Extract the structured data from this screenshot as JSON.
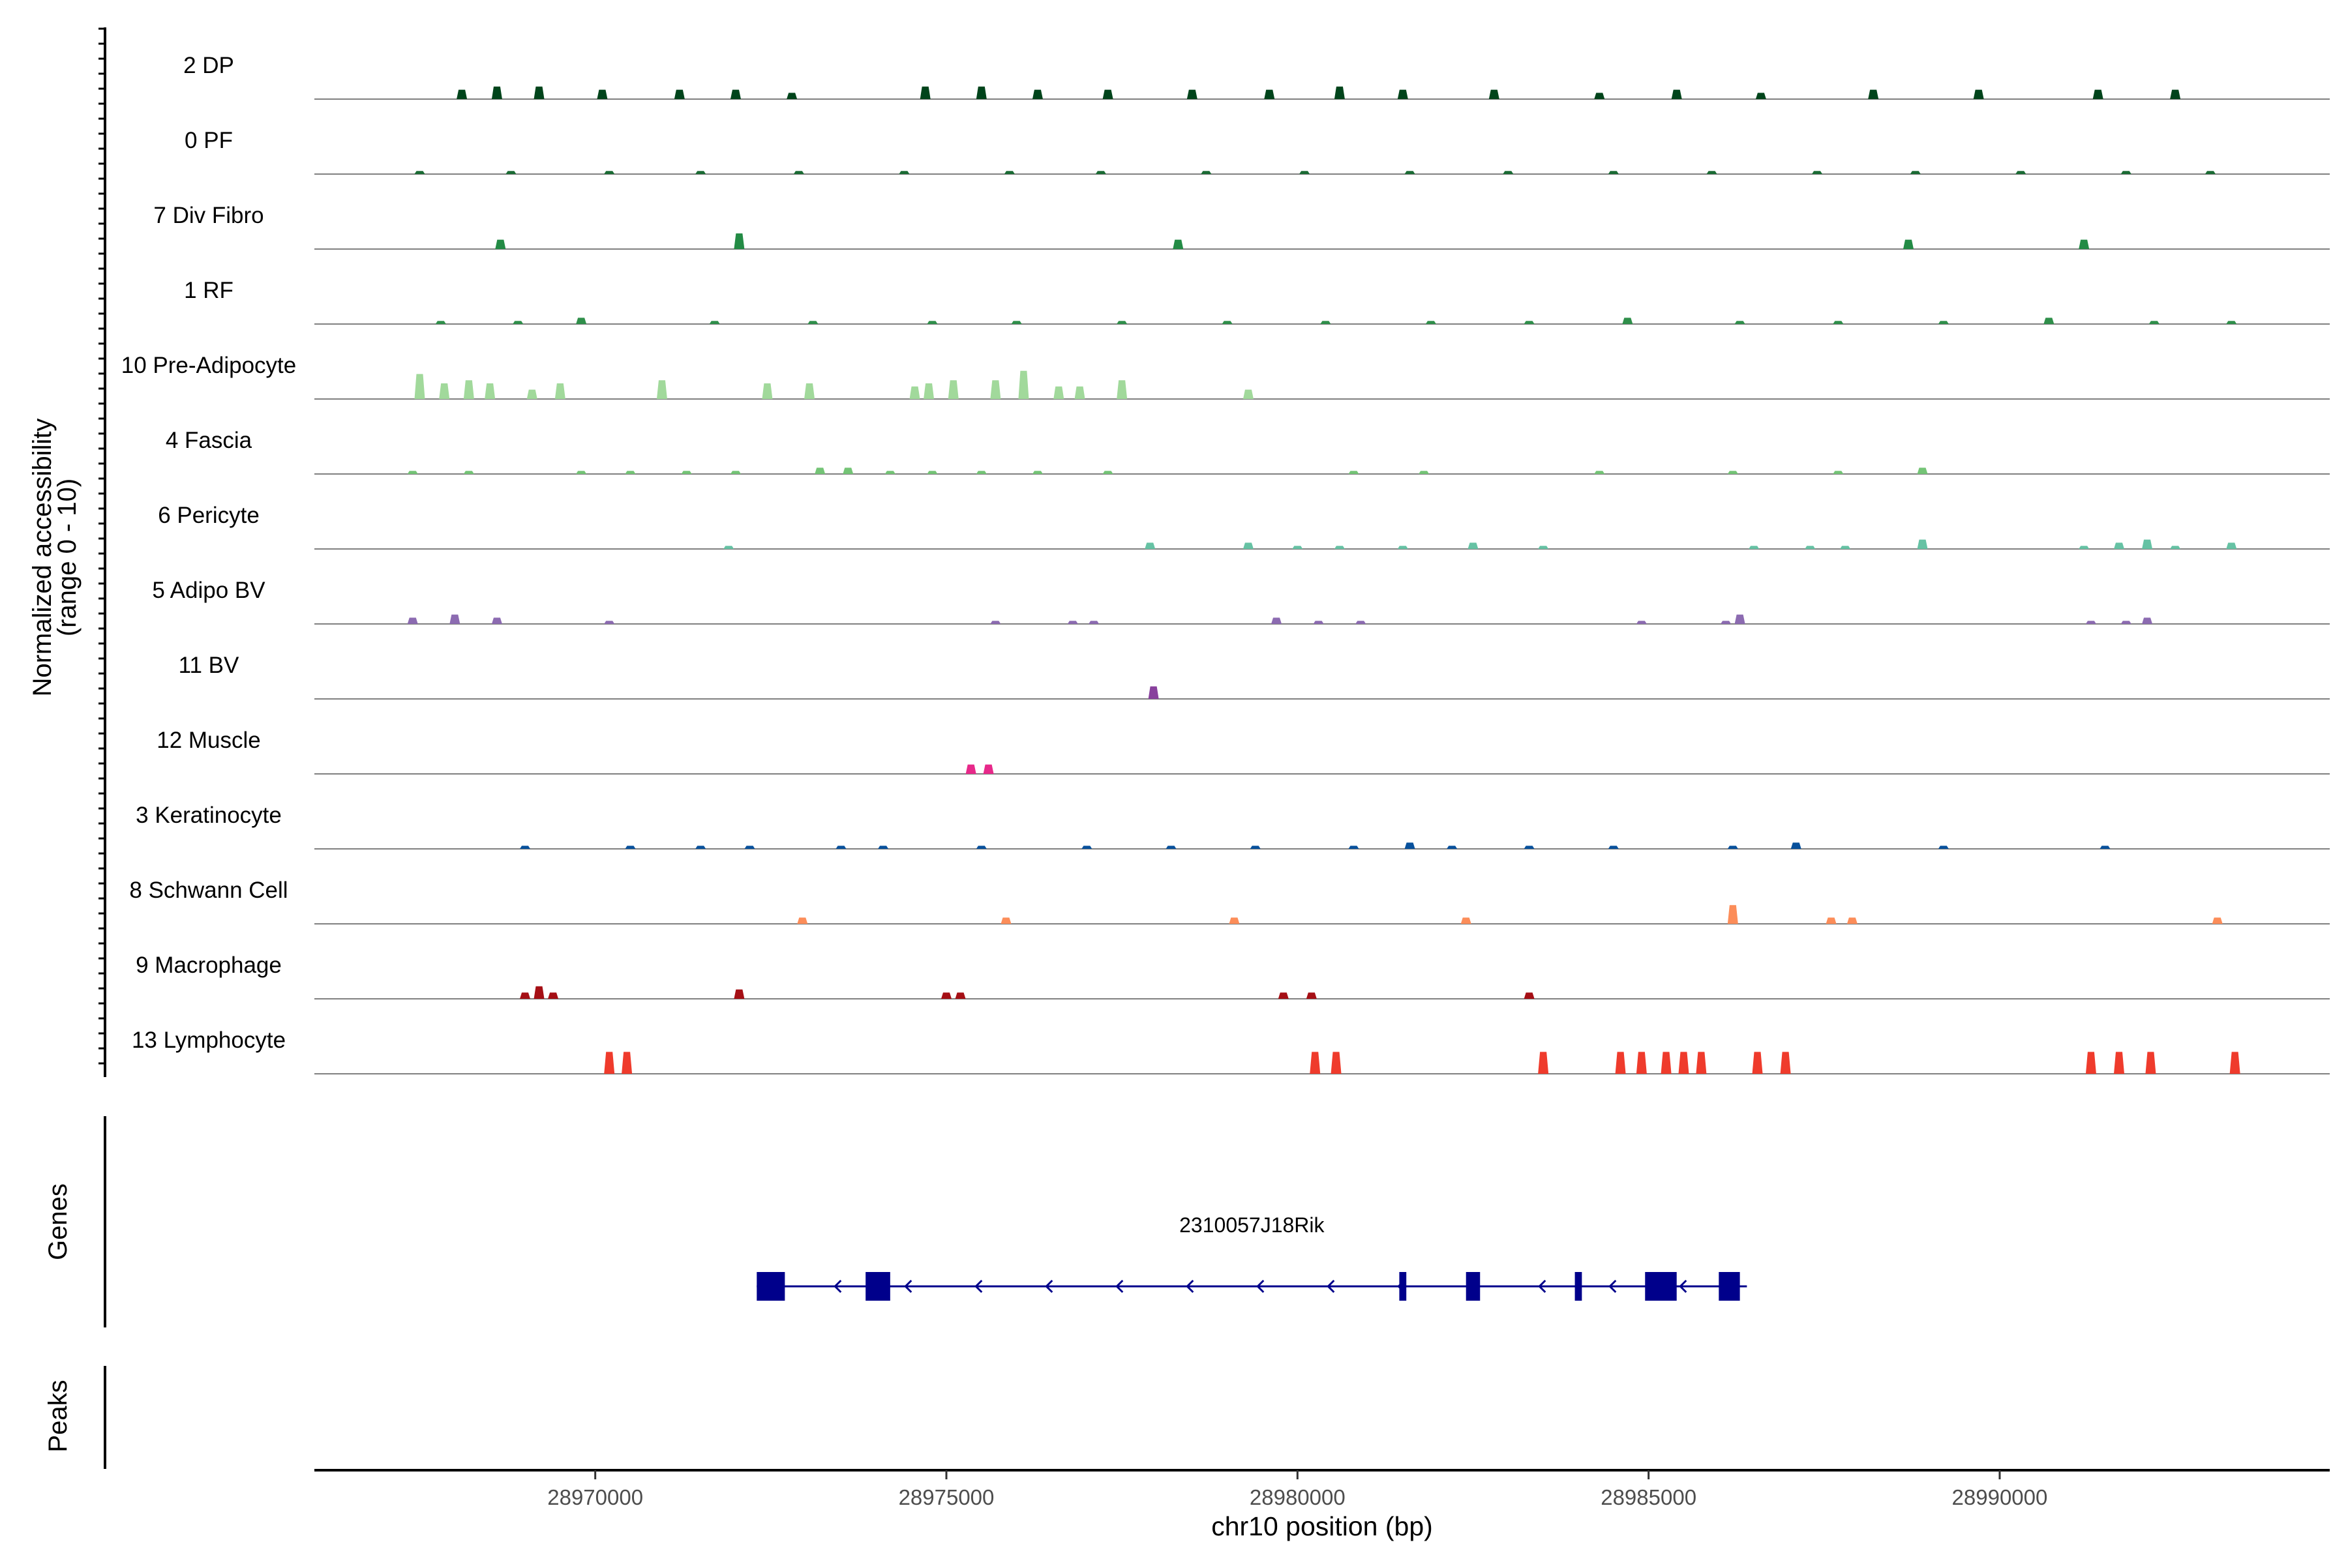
{
  "chart_data": {
    "type": "area",
    "title": "",
    "chromosome": "chr10",
    "xlabel": "chr10 position (bp)",
    "ylabel_line1": "Normalized accessibility",
    "ylabel_line2": "(range 0 - 10)",
    "xlim": [
      28966000,
      28994700
    ],
    "ylim": [
      0,
      10
    ],
    "x_ticks": [
      28970000,
      28975000,
      28980000,
      28985000,
      28990000
    ],
    "x_tick_labels": [
      "28970000",
      "28975000",
      "28980000",
      "28985000",
      "28990000"
    ],
    "panel_labels": {
      "genes": "Genes",
      "peaks": "Peaks"
    },
    "tracks": [
      {
        "name": "2 DP",
        "color": "#00441b",
        "peaks": [
          [
            28968100,
            3
          ],
          [
            28968600,
            4
          ],
          [
            28969200,
            4
          ],
          [
            28970100,
            3
          ],
          [
            28971200,
            3
          ],
          [
            28972000,
            3
          ],
          [
            28972800,
            2
          ],
          [
            28974700,
            4
          ],
          [
            28975500,
            4
          ],
          [
            28976300,
            3
          ],
          [
            28977300,
            3
          ],
          [
            28978500,
            3
          ],
          [
            28979600,
            3
          ],
          [
            28980600,
            4
          ],
          [
            28981500,
            3
          ],
          [
            28982800,
            3
          ],
          [
            28984300,
            2
          ],
          [
            28985400,
            3
          ],
          [
            28986600,
            2
          ],
          [
            28988200,
            3
          ],
          [
            28989700,
            3
          ],
          [
            28991400,
            3
          ],
          [
            28992500,
            3
          ]
        ]
      },
      {
        "name": "0 PF",
        "color": "#1a6b34",
        "peaks": [
          [
            28967500,
            1
          ],
          [
            28968800,
            1
          ],
          [
            28970200,
            1
          ],
          [
            28971500,
            1
          ],
          [
            28972900,
            1
          ],
          [
            28974400,
            1
          ],
          [
            28975900,
            1
          ],
          [
            28977200,
            1
          ],
          [
            28978700,
            1
          ],
          [
            28980100,
            1
          ],
          [
            28981600,
            1
          ],
          [
            28983000,
            1
          ],
          [
            28984500,
            1
          ],
          [
            28985900,
            1
          ],
          [
            28987400,
            1
          ],
          [
            28988800,
            1
          ],
          [
            28990300,
            1
          ],
          [
            28991800,
            1
          ],
          [
            28993000,
            1
          ]
        ]
      },
      {
        "name": "7 Div Fibro",
        "color": "#238b45",
        "peaks": [
          [
            28968650,
            3
          ],
          [
            28972050,
            5
          ],
          [
            28978300,
            3
          ],
          [
            28988700,
            3
          ],
          [
            28991200,
            3
          ]
        ]
      },
      {
        "name": "1 RF",
        "color": "#2f8f4a",
        "peaks": [
          [
            28967800,
            1
          ],
          [
            28968900,
            1
          ],
          [
            28969800,
            2
          ],
          [
            28971700,
            1
          ],
          [
            28973100,
            1
          ],
          [
            28974800,
            1
          ],
          [
            28976000,
            1
          ],
          [
            28977500,
            1
          ],
          [
            28979000,
            1
          ],
          [
            28980400,
            1
          ],
          [
            28981900,
            1
          ],
          [
            28983300,
            1
          ],
          [
            28984700,
            2
          ],
          [
            28986300,
            1
          ],
          [
            28987700,
            1
          ],
          [
            28989200,
            1
          ],
          [
            28990700,
            2
          ],
          [
            28992200,
            1
          ],
          [
            28993300,
            1
          ]
        ]
      },
      {
        "name": "10 Pre-Adipocyte",
        "color": "#a1d99b",
        "peaks": [
          [
            28967500,
            8
          ],
          [
            28967850,
            5
          ],
          [
            28968200,
            6
          ],
          [
            28968500,
            5
          ],
          [
            28969100,
            3
          ],
          [
            28969500,
            5
          ],
          [
            28970950,
            6
          ],
          [
            28972450,
            5
          ],
          [
            28973050,
            5
          ],
          [
            28974550,
            4
          ],
          [
            28974750,
            5
          ],
          [
            28975100,
            6
          ],
          [
            28975700,
            6
          ],
          [
            28976100,
            9
          ],
          [
            28976600,
            4
          ],
          [
            28976900,
            4
          ],
          [
            28977500,
            6
          ],
          [
            28979300,
            3
          ]
        ]
      },
      {
        "name": "4 Fascia",
        "color": "#74c476",
        "peaks": [
          [
            28967400,
            1
          ],
          [
            28968200,
            1
          ],
          [
            28969800,
            1
          ],
          [
            28970500,
            1
          ],
          [
            28971300,
            1
          ],
          [
            28972000,
            1
          ],
          [
            28973200,
            2
          ],
          [
            28973600,
            2
          ],
          [
            28974200,
            1
          ],
          [
            28974800,
            1
          ],
          [
            28975500,
            1
          ],
          [
            28976300,
            1
          ],
          [
            28977300,
            1
          ],
          [
            28980800,
            1
          ],
          [
            28981800,
            1
          ],
          [
            28984300,
            1
          ],
          [
            28986200,
            1
          ],
          [
            28987700,
            1
          ],
          [
            28988900,
            2
          ]
        ]
      },
      {
        "name": "6 Pericyte",
        "color": "#66c2a4",
        "peaks": [
          [
            28971900,
            1
          ],
          [
            28977900,
            2
          ],
          [
            28979300,
            2
          ],
          [
            28980000,
            1
          ],
          [
            28980600,
            1
          ],
          [
            28981500,
            1
          ],
          [
            28982500,
            2
          ],
          [
            28983500,
            1
          ],
          [
            28986500,
            1
          ],
          [
            28987300,
            1
          ],
          [
            28987800,
            1
          ],
          [
            28988900,
            3
          ],
          [
            28991200,
            1
          ],
          [
            28991700,
            2
          ],
          [
            28992100,
            3
          ],
          [
            28992500,
            1
          ],
          [
            28993300,
            2
          ]
        ]
      },
      {
        "name": "5 Adipo BV",
        "color": "#8c6bb1",
        "peaks": [
          [
            28967400,
            2
          ],
          [
            28968000,
            3
          ],
          [
            28968600,
            2
          ],
          [
            28970200,
            1
          ],
          [
            28975700,
            1
          ],
          [
            28976800,
            1
          ],
          [
            28977100,
            1
          ],
          [
            28979700,
            2
          ],
          [
            28980300,
            1
          ],
          [
            28980900,
            1
          ],
          [
            28984900,
            1
          ],
          [
            28986100,
            1
          ],
          [
            28986300,
            3
          ],
          [
            28991300,
            1
          ],
          [
            28991800,
            1
          ],
          [
            28992100,
            2
          ]
        ]
      },
      {
        "name": "11 BV",
        "color": "#88419d",
        "peaks": [
          [
            28977950,
            4
          ]
        ]
      },
      {
        "name": "12 Muscle",
        "color": "#e7298a",
        "peaks": [
          [
            28975350,
            3
          ],
          [
            28975600,
            3
          ]
        ]
      },
      {
        "name": "3 Keratinocyte",
        "color": "#08519c",
        "peaks": [
          [
            28969000,
            1
          ],
          [
            28970500,
            1
          ],
          [
            28971500,
            1
          ],
          [
            28972200,
            1
          ],
          [
            28973500,
            1
          ],
          [
            28974100,
            1
          ],
          [
            28975500,
            1
          ],
          [
            28977000,
            1
          ],
          [
            28978200,
            1
          ],
          [
            28979400,
            1
          ],
          [
            28980800,
            1
          ],
          [
            28981600,
            2
          ],
          [
            28982200,
            1
          ],
          [
            28983300,
            1
          ],
          [
            28984500,
            1
          ],
          [
            28986200,
            1
          ],
          [
            28987100,
            2
          ],
          [
            28989200,
            1
          ],
          [
            28991500,
            1
          ]
        ]
      },
      {
        "name": "8 Schwann Cell",
        "color": "#fc8d59",
        "peaks": [
          [
            28972950,
            2
          ],
          [
            28975850,
            2
          ],
          [
            28979100,
            2
          ],
          [
            28982400,
            2
          ],
          [
            28986200,
            6
          ],
          [
            28987600,
            2
          ],
          [
            28987900,
            2
          ],
          [
            28993100,
            2
          ]
        ]
      },
      {
        "name": "9 Macrophage",
        "color": "#a50f15",
        "peaks": [
          [
            28969000,
            2
          ],
          [
            28969200,
            4
          ],
          [
            28969400,
            2
          ],
          [
            28972050,
            3
          ],
          [
            28975000,
            2
          ],
          [
            28975200,
            2
          ],
          [
            28979800,
            2
          ],
          [
            28980200,
            2
          ],
          [
            28983300,
            2
          ]
        ]
      },
      {
        "name": "13 Lymphocyte",
        "color": "#ef3b2c",
        "peaks": [
          [
            28970200,
            7
          ],
          [
            28970450,
            7
          ],
          [
            28980250,
            7
          ],
          [
            28980550,
            7
          ],
          [
            28983500,
            7
          ],
          [
            28984600,
            7
          ],
          [
            28984900,
            7
          ],
          [
            28985250,
            7
          ],
          [
            28985500,
            7
          ],
          [
            28985750,
            7
          ],
          [
            28986550,
            7
          ],
          [
            28986950,
            7
          ],
          [
            28991300,
            7
          ],
          [
            28991700,
            7
          ],
          [
            28992150,
            7
          ],
          [
            28993350,
            7
          ]
        ]
      }
    ],
    "gene": {
      "name": "2310057J18Rik",
      "strand": "-",
      "start": 28972300,
      "end": 28986400,
      "exons": [
        [
          28972300,
          28972700
        ],
        [
          28973850,
          28974200
        ],
        [
          28981450,
          28981550
        ],
        [
          28982400,
          28982600
        ],
        [
          28983950,
          28984050
        ],
        [
          28984950,
          28985400
        ],
        [
          28986000,
          28986300
        ]
      ]
    }
  }
}
